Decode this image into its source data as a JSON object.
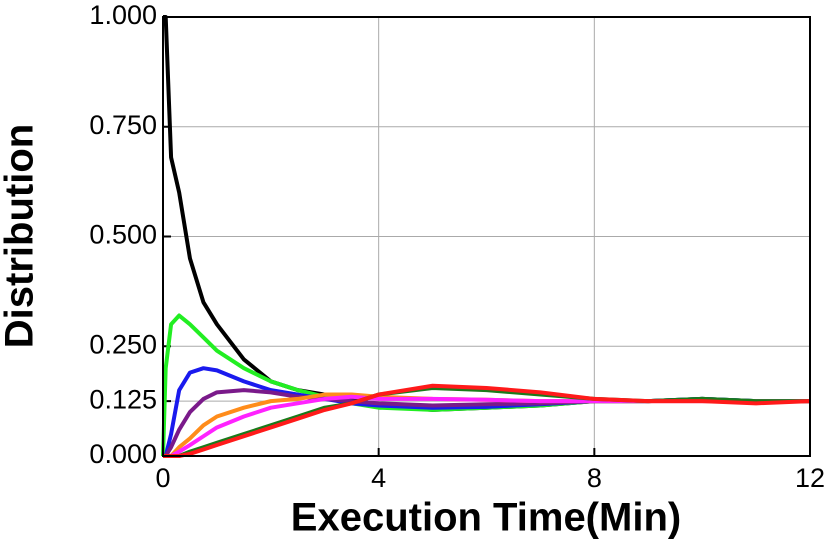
{
  "chart_data": {
    "type": "line",
    "x_label": "Execution Time(Min)",
    "y_label": "Distribution",
    "x": [
      0,
      0.05,
      0.15,
      0.3,
      0.5,
      0.75,
      1,
      1.5,
      2,
      2.5,
      3,
      3.5,
      4,
      5,
      6,
      7,
      8,
      9,
      10,
      11,
      12
    ],
    "series": [
      {
        "color": "#000000",
        "values": [
          1.0,
          1.0,
          0.68,
          0.6,
          0.45,
          0.35,
          0.3,
          0.22,
          0.17,
          0.15,
          0.14,
          0.13,
          0.115,
          0.105,
          0.11,
          0.115,
          0.125,
          0.125,
          0.13,
          0.125,
          0.125
        ]
      },
      {
        "color": "#22ee22",
        "values": [
          0,
          0.2,
          0.3,
          0.32,
          0.3,
          0.27,
          0.24,
          0.2,
          0.17,
          0.15,
          0.135,
          0.12,
          0.11,
          0.105,
          0.11,
          0.115,
          0.125,
          0.125,
          0.13,
          0.125,
          0.125
        ]
      },
      {
        "color": "#1a1aee",
        "values": [
          0,
          0,
          0.05,
          0.15,
          0.19,
          0.2,
          0.195,
          0.17,
          0.15,
          0.14,
          0.13,
          0.12,
          0.115,
          0.11,
          0.112,
          0.118,
          0.125,
          0.125,
          0.13,
          0.125,
          0.125
        ]
      },
      {
        "color": "#7a1a8a",
        "values": [
          0,
          0,
          0.02,
          0.06,
          0.1,
          0.13,
          0.145,
          0.15,
          0.145,
          0.135,
          0.13,
          0.125,
          0.12,
          0.115,
          0.118,
          0.12,
          0.125,
          0.125,
          0.128,
          0.125,
          0.125
        ]
      },
      {
        "color": "#ff8c1a",
        "values": [
          0,
          0,
          0,
          0.02,
          0.04,
          0.07,
          0.09,
          0.11,
          0.125,
          0.13,
          0.14,
          0.14,
          0.135,
          0.13,
          0.128,
          0.125,
          0.125,
          0.125,
          0.125,
          0.125,
          0.125
        ]
      },
      {
        "color": "#ff22ff",
        "values": [
          0,
          0,
          0,
          0.01,
          0.025,
          0.045,
          0.065,
          0.09,
          0.11,
          0.12,
          0.13,
          0.135,
          0.13,
          0.13,
          0.128,
          0.125,
          0.125,
          0.125,
          0.125,
          0.125,
          0.125
        ]
      },
      {
        "color": "#1a7a1a",
        "values": [
          0,
          0,
          0,
          0,
          0.01,
          0.02,
          0.03,
          0.05,
          0.07,
          0.09,
          0.11,
          0.12,
          0.14,
          0.155,
          0.15,
          0.14,
          0.13,
          0.125,
          0.13,
          0.125,
          0.125
        ]
      },
      {
        "color": "#ff1a1a",
        "values": [
          0,
          0,
          0,
          0,
          0.005,
          0.015,
          0.025,
          0.045,
          0.065,
          0.085,
          0.105,
          0.12,
          0.14,
          0.16,
          0.155,
          0.145,
          0.13,
          0.125,
          0.125,
          0.12,
          0.125
        ]
      }
    ],
    "xlim": [
      0,
      12
    ],
    "xticks": [
      0,
      4,
      8,
      12
    ],
    "ylim": [
      0,
      1
    ],
    "yticks": [
      {
        "value": 0,
        "label": "0.000"
      },
      {
        "value": 0.125,
        "label": "0.125"
      },
      {
        "value": 0.25,
        "label": "0.250"
      },
      {
        "value": 0.5,
        "label": "0.500"
      },
      {
        "value": 0.75,
        "label": "0.750"
      },
      {
        "value": 1,
        "label": "1.000"
      }
    ],
    "grid": true
  }
}
